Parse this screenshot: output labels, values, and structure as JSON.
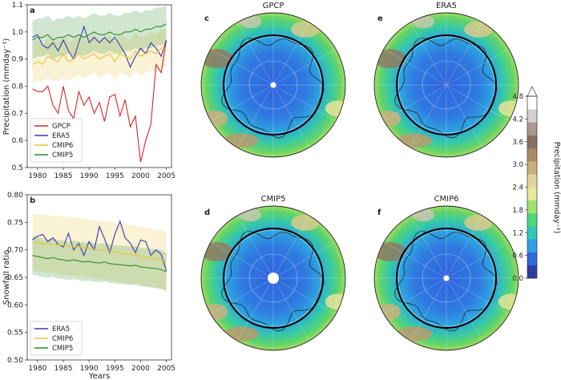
{
  "chart_data": [
    {
      "panel": "a",
      "type": "line",
      "xlabel": "",
      "ylabel": "Precipitation (mmday⁻¹)",
      "xlim": [
        1978,
        2006
      ],
      "ylim": [
        0.5,
        1.1
      ],
      "xticks": [
        1980,
        1985,
        1990,
        1995,
        2000,
        2005
      ],
      "yticks": [
        0.5,
        0.6,
        0.7,
        0.8,
        0.9,
        1.0,
        1.1
      ],
      "legend_position": "lower-left",
      "x": [
        1979,
        1980,
        1981,
        1982,
        1983,
        1984,
        1985,
        1986,
        1987,
        1988,
        1989,
        1990,
        1991,
        1992,
        1993,
        1994,
        1995,
        1996,
        1997,
        1998,
        1999,
        2000,
        2001,
        2002,
        2003,
        2004,
        2005
      ],
      "series": [
        {
          "name": "GPCP",
          "color": "#d62728",
          "values": [
            0.79,
            0.78,
            0.78,
            0.8,
            0.73,
            0.7,
            0.8,
            0.71,
            0.68,
            0.78,
            0.73,
            0.76,
            0.7,
            0.74,
            0.67,
            0.76,
            0.77,
            0.69,
            0.75,
            0.65,
            0.69,
            0.52,
            0.6,
            0.66,
            0.88,
            0.85,
            0.97
          ]
        },
        {
          "name": "ERA5",
          "color": "#3a3ab0",
          "values": [
            0.98,
            0.99,
            0.95,
            0.94,
            0.96,
            0.93,
            0.97,
            0.93,
            0.9,
            0.96,
            1.02,
            0.96,
            0.98,
            0.96,
            0.98,
            0.96,
            0.98,
            0.95,
            0.92,
            0.87,
            0.91,
            0.94,
            0.92,
            0.96,
            0.94,
            0.91,
            0.97
          ]
        },
        {
          "name": "CMIP6",
          "color": "#e8c23a",
          "values": [
            0.88,
            0.89,
            0.88,
            0.91,
            0.9,
            0.89,
            0.92,
            0.89,
            0.9,
            0.92,
            0.9,
            0.91,
            0.92,
            0.9,
            0.91,
            0.92,
            0.89,
            0.92,
            0.91,
            0.9,
            0.93,
            0.91,
            0.92,
            0.93,
            0.92,
            0.94,
            0.94
          ],
          "band_lower": [
            0.81,
            0.82,
            0.82,
            0.83,
            0.82,
            0.82,
            0.83,
            0.82,
            0.83,
            0.84,
            0.83,
            0.84,
            0.85,
            0.83,
            0.84,
            0.85,
            0.82,
            0.85,
            0.84,
            0.83,
            0.86,
            0.84,
            0.85,
            0.86,
            0.85,
            0.87,
            0.87
          ],
          "band_upper": [
            0.96,
            0.97,
            0.95,
            0.98,
            0.97,
            0.96,
            0.99,
            0.96,
            0.97,
            0.99,
            0.97,
            0.98,
            0.99,
            0.97,
            0.98,
            0.99,
            0.96,
            0.99,
            0.98,
            0.97,
            1.0,
            0.98,
            0.99,
            1.0,
            0.99,
            1.01,
            1.01
          ]
        },
        {
          "name": "CMIP5",
          "color": "#2e8b2e",
          "values": [
            0.97,
            0.98,
            0.98,
            0.99,
            0.97,
            0.98,
            0.98,
            0.99,
            0.98,
            0.99,
            0.98,
            0.99,
            1.0,
            0.99,
            0.99,
            1.0,
            0.99,
            0.99,
            1.0,
            1.0,
            1.01,
            1.0,
            1.01,
            1.01,
            1.02,
            1.02,
            1.03
          ],
          "band_lower": [
            0.9,
            0.91,
            0.91,
            0.92,
            0.9,
            0.91,
            0.91,
            0.92,
            0.91,
            0.92,
            0.91,
            0.92,
            0.93,
            0.92,
            0.92,
            0.93,
            0.92,
            0.92,
            0.93,
            0.93,
            0.94,
            0.93,
            0.94,
            0.94,
            0.95,
            0.95,
            0.96
          ],
          "band_upper": [
            1.04,
            1.05,
            1.05,
            1.06,
            1.04,
            1.05,
            1.05,
            1.06,
            1.05,
            1.06,
            1.05,
            1.06,
            1.07,
            1.06,
            1.06,
            1.07,
            1.06,
            1.06,
            1.07,
            1.07,
            1.08,
            1.07,
            1.08,
            1.08,
            1.09,
            1.09,
            1.1
          ]
        }
      ]
    },
    {
      "panel": "b",
      "type": "line",
      "xlabel": "Years",
      "ylabel": "Snowfall ratio",
      "xlim": [
        1978,
        2006
      ],
      "ylim": [
        0.5,
        0.8
      ],
      "xticks": [
        1980,
        1985,
        1990,
        1995,
        2000,
        2005
      ],
      "yticks": [
        0.5,
        0.55,
        0.6,
        0.65,
        0.7,
        0.75,
        0.8
      ],
      "legend_position": "lower-left",
      "x": [
        1979,
        1980,
        1981,
        1982,
        1983,
        1984,
        1985,
        1986,
        1987,
        1988,
        1989,
        1990,
        1991,
        1992,
        1993,
        1994,
        1995,
        1996,
        1997,
        1998,
        1999,
        2000,
        2001,
        2002,
        2003,
        2004,
        2005
      ],
      "series": [
        {
          "name": "ERA5",
          "color": "#3a3ab0",
          "values": [
            0.718,
            0.725,
            0.728,
            0.715,
            0.722,
            0.71,
            0.705,
            0.73,
            0.7,
            0.712,
            0.69,
            0.715,
            0.7,
            0.742,
            0.72,
            0.695,
            0.728,
            0.752,
            0.722,
            0.712,
            0.695,
            0.718,
            0.715,
            0.69,
            0.7,
            0.692,
            0.662
          ]
        },
        {
          "name": "CMIP6",
          "color": "#e8c23a",
          "values": [
            0.712,
            0.714,
            0.712,
            0.711,
            0.71,
            0.709,
            0.708,
            0.707,
            0.706,
            0.705,
            0.704,
            0.703,
            0.701,
            0.7,
            0.699,
            0.698,
            0.696,
            0.695,
            0.693,
            0.692,
            0.69,
            0.689,
            0.687,
            0.685,
            0.683,
            0.682,
            0.68
          ],
          "band_lower": [
            0.66,
            0.662,
            0.66,
            0.659,
            0.658,
            0.656,
            0.655,
            0.654,
            0.653,
            0.652,
            0.651,
            0.65,
            0.648,
            0.647,
            0.646,
            0.645,
            0.643,
            0.642,
            0.64,
            0.639,
            0.637,
            0.636,
            0.634,
            0.632,
            0.63,
            0.629,
            0.627
          ],
          "band_upper": [
            0.764,
            0.766,
            0.764,
            0.763,
            0.762,
            0.762,
            0.761,
            0.76,
            0.759,
            0.758,
            0.757,
            0.756,
            0.754,
            0.753,
            0.752,
            0.751,
            0.749,
            0.748,
            0.746,
            0.745,
            0.743,
            0.742,
            0.74,
            0.738,
            0.736,
            0.735,
            0.733
          ]
        },
        {
          "name": "CMIP5",
          "color": "#2e8b2e",
          "values": [
            0.69,
            0.688,
            0.686,
            0.684,
            0.686,
            0.683,
            0.682,
            0.68,
            0.682,
            0.68,
            0.678,
            0.679,
            0.677,
            0.676,
            0.678,
            0.675,
            0.674,
            0.673,
            0.672,
            0.671,
            0.672,
            0.669,
            0.668,
            0.667,
            0.666,
            0.664,
            0.66
          ],
          "band_lower": [
            0.655,
            0.653,
            0.651,
            0.649,
            0.651,
            0.648,
            0.647,
            0.645,
            0.647,
            0.645,
            0.643,
            0.644,
            0.642,
            0.641,
            0.643,
            0.64,
            0.639,
            0.638,
            0.637,
            0.636,
            0.637,
            0.634,
            0.633,
            0.632,
            0.631,
            0.629,
            0.625
          ],
          "band_upper": [
            0.725,
            0.723,
            0.721,
            0.719,
            0.721,
            0.718,
            0.717,
            0.715,
            0.717,
            0.715,
            0.713,
            0.714,
            0.712,
            0.711,
            0.713,
            0.71,
            0.709,
            0.708,
            0.707,
            0.706,
            0.707,
            0.704,
            0.703,
            0.702,
            0.701,
            0.699,
            0.695
          ]
        }
      ]
    },
    {
      "panel": "c-f",
      "type": "heatmap",
      "maps": [
        {
          "panel": "c",
          "title": "GPCP"
        },
        {
          "panel": "e",
          "title": "ERA5"
        },
        {
          "panel": "d",
          "title": "CMIP5"
        },
        {
          "panel": "f",
          "title": "CMIP6"
        }
      ],
      "colorbar": {
        "label": "Precipitation (mmday⁻¹)",
        "ticks": [
          "0.0",
          "0.6",
          "1.2",
          "1.8",
          "2.4",
          "3.0",
          "3.6",
          "4.2",
          "4.8"
        ],
        "colors": [
          "#2b3c9e",
          "#2f6ad9",
          "#2e9ee6",
          "#2fc9b8",
          "#4cd67a",
          "#9ee46a",
          "#e8e89a",
          "#e3d59a",
          "#c9ae78",
          "#a98c66",
          "#8a7060",
          "#a89890",
          "#d6cfcf",
          "#ffffff"
        ]
      }
    }
  ]
}
